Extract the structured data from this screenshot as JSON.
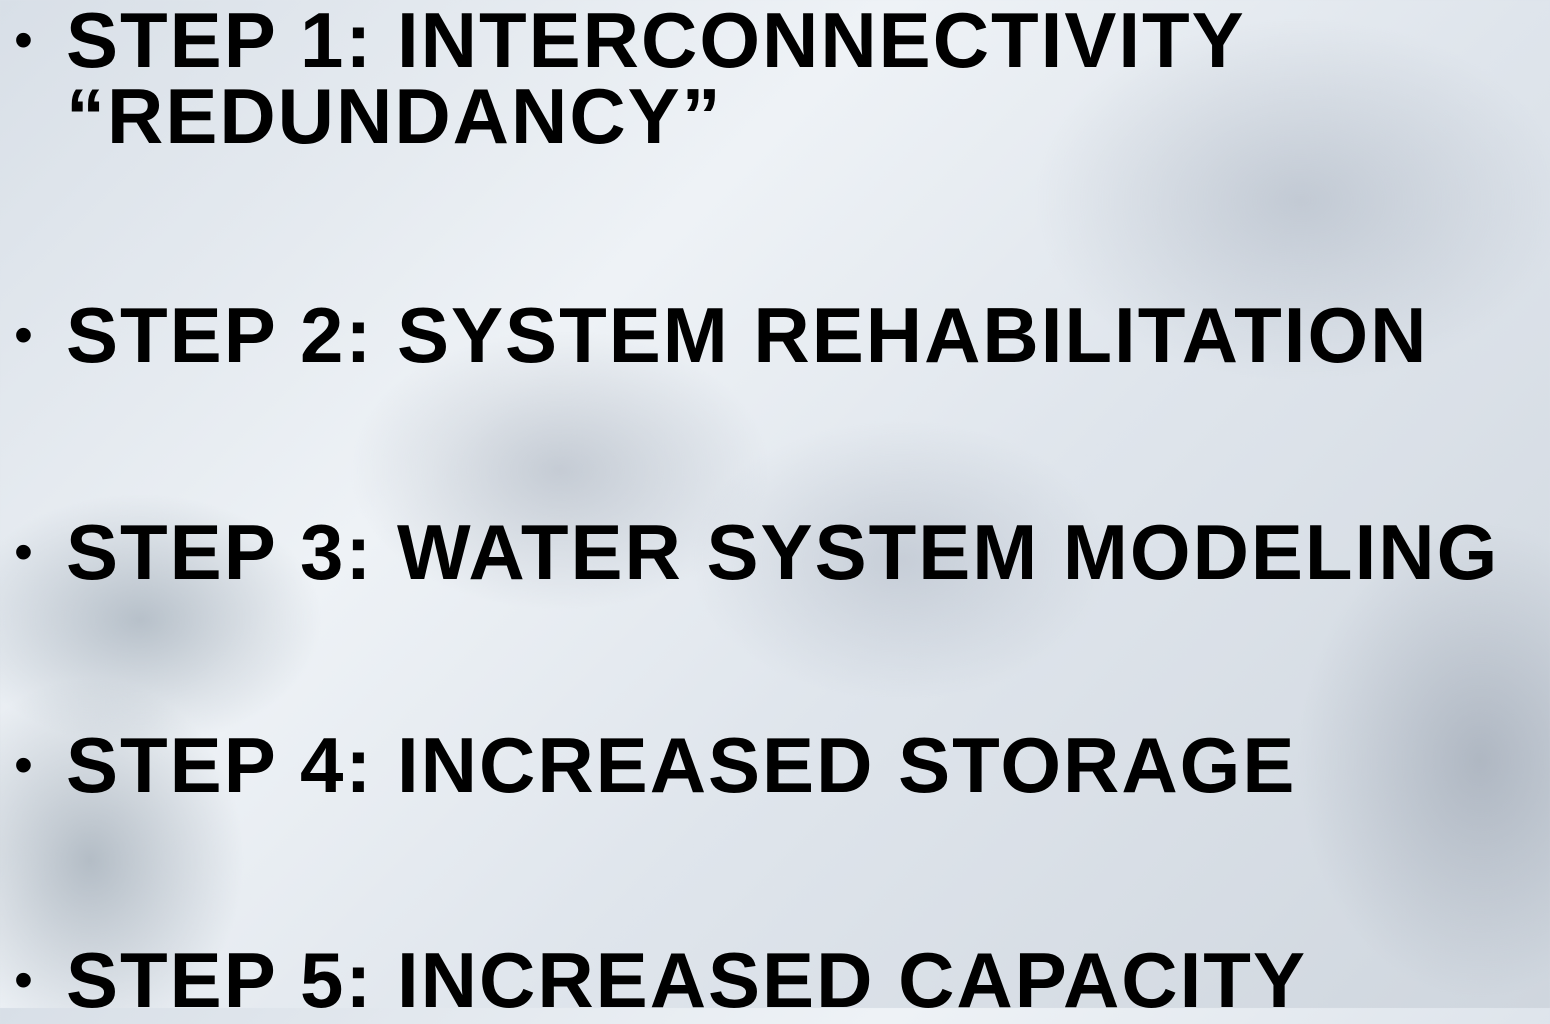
{
  "slide": {
    "items": [
      "STEP 1: INTERCONNECTIVITY “REDUNDANCY”",
      "STEP 2: SYSTEM REHABILITATION",
      "STEP 3: WATER SYSTEM MODELING",
      "STEP 4: INCREASED STORAGE",
      "STEP 5: INCREASED CAPACITY"
    ]
  }
}
